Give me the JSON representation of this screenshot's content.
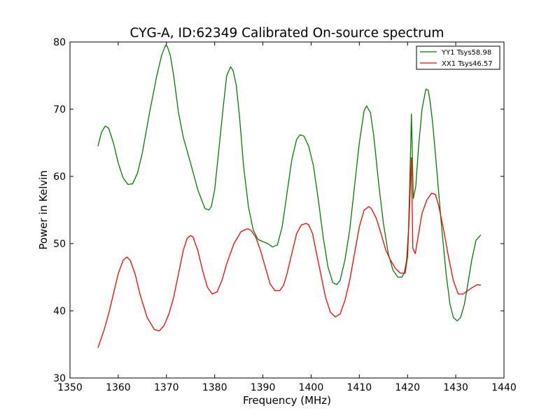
{
  "chart_data": {
    "type": "line",
    "title": "CYG-A, ID:62349 Calibrated On-source spectrum",
    "xlabel": "Frequency (MHz)",
    "ylabel": "Power in Kelvin",
    "xlim": [
      1350,
      1440
    ],
    "ylim": [
      30,
      80
    ],
    "xticks": [
      1350,
      1360,
      1370,
      1380,
      1390,
      1400,
      1410,
      1420,
      1430,
      1440
    ],
    "yticks": [
      30,
      40,
      50,
      60,
      70,
      80
    ],
    "grid": false,
    "legend_position": "top-right",
    "series": [
      {
        "name": "YY1 Tsys58.98",
        "color": "#008000",
        "x": [
          1355.8,
          1356.5,
          1357.3,
          1358.0,
          1359.0,
          1360.0,
          1361.0,
          1362.0,
          1363.0,
          1364.0,
          1365.0,
          1366.5,
          1368.0,
          1369.0,
          1369.8,
          1370.2,
          1370.8,
          1371.5,
          1372.5,
          1373.5,
          1375.0,
          1376.5,
          1378.0,
          1378.8,
          1379.3,
          1380.0,
          1380.8,
          1381.8,
          1382.5,
          1383.3,
          1383.8,
          1384.5,
          1385.2,
          1386.0,
          1387.0,
          1388.0,
          1389.0,
          1390.0,
          1391.0,
          1392.0,
          1393.0,
          1394.0,
          1395.0,
          1396.0,
          1397.0,
          1397.7,
          1398.5,
          1399.5,
          1400.5,
          1401.5,
          1402.5,
          1403.5,
          1404.5,
          1405.3,
          1406.0,
          1407.0,
          1408.0,
          1409.0,
          1410.0,
          1411.0,
          1411.5,
          1412.3,
          1413.0,
          1414.0,
          1415.0,
          1416.0,
          1417.0,
          1418.0,
          1418.8,
          1419.3,
          1419.8,
          1420.2,
          1420.6,
          1420.8,
          1421.2,
          1421.7,
          1422.3,
          1423.0,
          1423.8,
          1424.3,
          1424.7,
          1425.2,
          1426.0,
          1427.0,
          1428.0,
          1428.8,
          1429.5,
          1430.3,
          1431.0,
          1431.8,
          1432.5,
          1433.3,
          1434.2,
          1435.2
        ],
        "y": [
          64.5,
          66.5,
          67.5,
          67.2,
          65.0,
          62.0,
          59.8,
          58.8,
          58.9,
          60.5,
          63.5,
          69.5,
          75.0,
          78.0,
          79.5,
          79.3,
          78.0,
          75.0,
          69.5,
          65.8,
          62.0,
          58.0,
          55.2,
          55.0,
          55.5,
          58.0,
          63.5,
          70.5,
          75.0,
          76.3,
          75.8,
          73.5,
          68.5,
          61.5,
          55.5,
          52.0,
          50.6,
          50.3,
          50.0,
          49.5,
          49.8,
          52.5,
          57.5,
          62.5,
          65.5,
          66.2,
          66.0,
          64.5,
          61.5,
          56.5,
          51.0,
          46.5,
          44.2,
          43.9,
          44.5,
          47.5,
          52.0,
          58.5,
          65.0,
          69.8,
          70.5,
          69.5,
          66.0,
          59.0,
          53.0,
          48.5,
          46.0,
          45.0,
          45.0,
          45.6,
          47.5,
          52.0,
          63.0,
          69.3,
          56.7,
          58.5,
          64.5,
          70.0,
          73.0,
          72.8,
          71.0,
          68.0,
          61.5,
          53.0,
          45.5,
          41.0,
          39.0,
          38.5,
          39.0,
          41.0,
          44.0,
          47.5,
          50.5,
          51.3
        ]
      },
      {
        "name": "XX1 Tsys46.57",
        "color": "#ff0000",
        "x": [
          1355.8,
          1357.0,
          1358.0,
          1359.0,
          1360.0,
          1361.0,
          1361.8,
          1362.5,
          1363.5,
          1364.5,
          1366.0,
          1367.5,
          1368.5,
          1369.5,
          1370.5,
          1371.5,
          1372.5,
          1373.5,
          1374.3,
          1375.0,
          1375.5,
          1376.5,
          1377.5,
          1378.5,
          1379.5,
          1380.5,
          1381.5,
          1382.5,
          1384.0,
          1385.5,
          1386.8,
          1387.5,
          1388.5,
          1389.5,
          1390.5,
          1391.5,
          1392.5,
          1393.5,
          1394.3,
          1395.0,
          1396.0,
          1397.0,
          1398.0,
          1399.0,
          1399.5,
          1400.3,
          1401.0,
          1402.0,
          1403.0,
          1404.0,
          1405.0,
          1406.0,
          1407.0,
          1408.0,
          1409.0,
          1410.0,
          1411.0,
          1412.0,
          1412.5,
          1413.5,
          1414.5,
          1415.5,
          1416.5,
          1417.5,
          1418.5,
          1419.5,
          1420.0,
          1420.4,
          1420.8,
          1421.1,
          1421.6,
          1422.3,
          1423.0,
          1424.0,
          1425.0,
          1425.8,
          1426.5,
          1427.5,
          1428.5,
          1429.5,
          1430.5,
          1431.5,
          1432.5,
          1433.5,
          1434.5,
          1435.2
        ],
        "y": [
          34.5,
          37.0,
          39.5,
          42.5,
          45.5,
          47.5,
          48.0,
          47.5,
          45.5,
          42.5,
          39.0,
          37.2,
          37.0,
          37.8,
          39.5,
          42.0,
          45.5,
          49.0,
          50.8,
          51.2,
          51.0,
          49.0,
          46.0,
          43.5,
          42.5,
          42.8,
          44.5,
          47.0,
          50.0,
          51.8,
          52.2,
          52.0,
          51.0,
          49.0,
          46.5,
          44.0,
          43.0,
          43.0,
          43.8,
          45.5,
          48.5,
          51.5,
          52.8,
          53.0,
          52.8,
          51.5,
          49.0,
          45.5,
          42.0,
          39.8,
          39.1,
          39.5,
          41.5,
          44.5,
          48.5,
          52.5,
          55.0,
          55.5,
          55.2,
          53.8,
          51.5,
          49.0,
          47.5,
          46.3,
          45.6,
          45.6,
          48.0,
          55.0,
          62.8,
          49.3,
          48.5,
          51.5,
          54.5,
          56.5,
          57.5,
          57.3,
          55.5,
          52.0,
          48.0,
          44.5,
          42.5,
          42.5,
          43.0,
          43.5,
          43.9,
          43.8
        ]
      }
    ]
  }
}
